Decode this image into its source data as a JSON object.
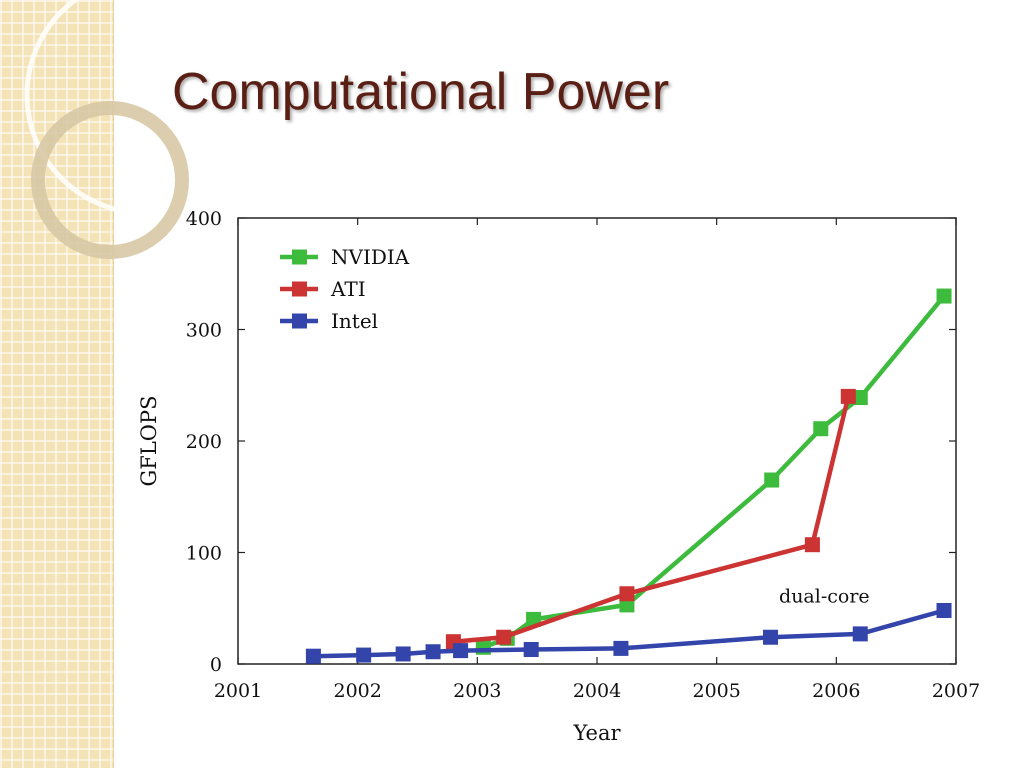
{
  "slide": {
    "title": "Computational Power"
  },
  "chart_data": {
    "type": "line",
    "xlabel": "Year",
    "ylabel": "GFLOPS",
    "xlim": [
      2001,
      2007
    ],
    "ylim": [
      0,
      400
    ],
    "xticks": [
      "2001",
      "2002",
      "2003",
      "2004",
      "2005",
      "2006",
      "2007"
    ],
    "yticks": [
      "0",
      "100",
      "200",
      "300",
      "400"
    ],
    "legend_position": "top-left",
    "series": [
      {
        "name": "NVIDIA",
        "color": "#3dbb3d",
        "points": [
          [
            2003.05,
            15
          ],
          [
            2003.25,
            23
          ],
          [
            2003.47,
            40
          ],
          [
            2004.25,
            53
          ],
          [
            2005.46,
            165
          ],
          [
            2005.87,
            211
          ],
          [
            2006.2,
            239
          ],
          [
            2006.9,
            330
          ]
        ]
      },
      {
        "name": "ATI",
        "color": "#cc3333",
        "points": [
          [
            2002.8,
            20
          ],
          [
            2003.22,
            24
          ],
          [
            2004.25,
            63
          ],
          [
            2005.8,
            107
          ],
          [
            2006.1,
            240
          ]
        ]
      },
      {
        "name": "Intel",
        "color": "#3344aa",
        "points": [
          [
            2001.63,
            7
          ],
          [
            2002.05,
            8
          ],
          [
            2002.38,
            9
          ],
          [
            2002.63,
            11
          ],
          [
            2002.86,
            12
          ],
          [
            2003.45,
            13
          ],
          [
            2004.2,
            14
          ],
          [
            2005.45,
            24
          ],
          [
            2006.2,
            27
          ],
          [
            2006.9,
            48
          ]
        ]
      }
    ],
    "annotations": [
      {
        "text": "dual-core",
        "x": 2005.9,
        "y": 55
      }
    ]
  }
}
